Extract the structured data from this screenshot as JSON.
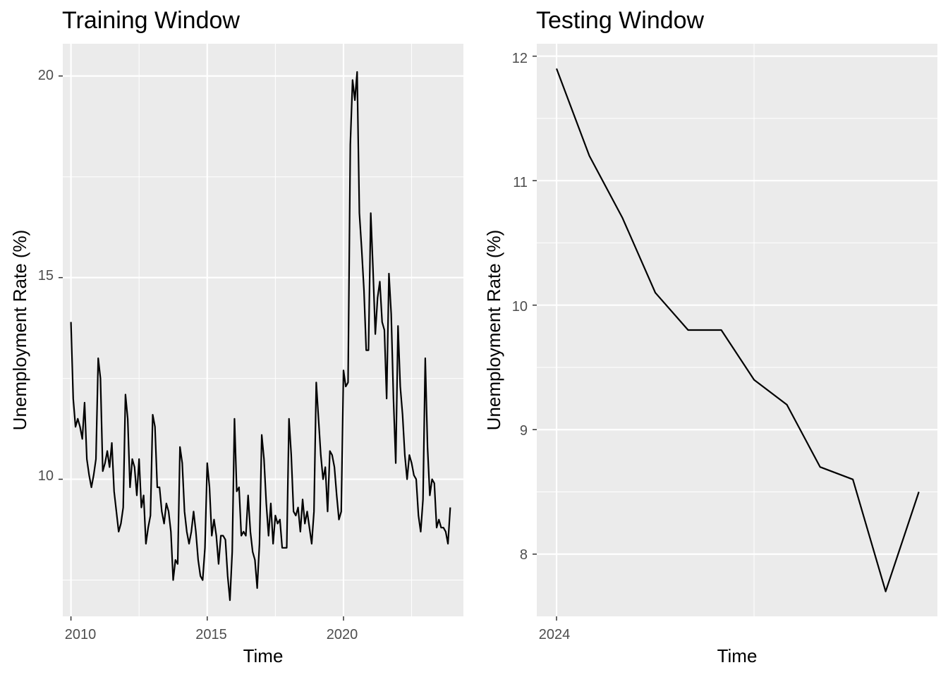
{
  "chart_data": [
    {
      "type": "line",
      "title": "Training Window",
      "xlabel": "Time",
      "ylabel": "Unemployment Rate (%)",
      "x_ticks": [
        "2010",
        "2015",
        "2020"
      ],
      "y_ticks": [
        "10",
        "15",
        "20"
      ],
      "xlim": [
        2009.7,
        2024.4
      ],
      "ylim": [
        6.6,
        20.8
      ],
      "grid": true,
      "legend": "none",
      "series": [
        {
          "x": [
            2010.0,
            2010.083,
            2010.167,
            2010.25,
            2010.333,
            2010.417,
            2010.5,
            2010.583,
            2010.667,
            2010.75,
            2010.833,
            2010.917,
            2011.0,
            2011.083,
            2011.167,
            2011.25,
            2011.333,
            2011.417,
            2011.5,
            2011.583,
            2011.667,
            2011.75,
            2011.833,
            2011.917,
            2012.0,
            2012.083,
            2012.167,
            2012.25,
            2012.333,
            2012.417,
            2012.5,
            2012.583,
            2012.667,
            2012.75,
            2012.833,
            2012.917,
            2013.0,
            2013.083,
            2013.167,
            2013.25,
            2013.333,
            2013.417,
            2013.5,
            2013.583,
            2013.667,
            2013.75,
            2013.833,
            2013.917,
            2014.0,
            2014.083,
            2014.167,
            2014.25,
            2014.333,
            2014.417,
            2014.5,
            2014.583,
            2014.667,
            2014.75,
            2014.833,
            2014.917,
            2015.0,
            2015.083,
            2015.167,
            2015.25,
            2015.333,
            2015.417,
            2015.5,
            2015.583,
            2015.667,
            2015.75,
            2015.833,
            2015.917,
            2016.0,
            2016.083,
            2016.167,
            2016.25,
            2016.333,
            2016.417,
            2016.5,
            2016.583,
            2016.667,
            2016.75,
            2016.833,
            2016.917,
            2017.0,
            2017.083,
            2017.167,
            2017.25,
            2017.333,
            2017.417,
            2017.5,
            2017.583,
            2017.667,
            2017.75,
            2017.833,
            2017.917,
            2018.0,
            2018.083,
            2018.167,
            2018.25,
            2018.333,
            2018.417,
            2018.5,
            2018.583,
            2018.667,
            2018.75,
            2018.833,
            2018.917,
            2019.0,
            2019.083,
            2019.167,
            2019.25,
            2019.333,
            2019.417,
            2019.5,
            2019.583,
            2019.667,
            2019.75,
            2019.833,
            2019.917,
            2020.0,
            2020.083,
            2020.167,
            2020.25,
            2020.333,
            2020.417,
            2020.5,
            2020.583,
            2020.667,
            2020.75,
            2020.833,
            2020.917,
            2021.0,
            2021.083,
            2021.167,
            2021.25,
            2021.333,
            2021.417,
            2021.5,
            2021.583,
            2021.667,
            2021.75,
            2021.833,
            2021.917,
            2022.0,
            2022.083,
            2022.167,
            2022.25,
            2022.333,
            2022.417,
            2022.5,
            2022.583,
            2022.667,
            2022.75,
            2022.833,
            2022.917,
            2023.0,
            2023.083,
            2023.167,
            2023.25,
            2023.333,
            2023.417,
            2023.5,
            2023.583,
            2023.667,
            2023.75,
            2023.833,
            2023.917
          ],
          "y": [
            13.9,
            12.0,
            11.3,
            11.5,
            11.3,
            11.0,
            11.9,
            10.5,
            10.1,
            9.8,
            10.1,
            10.5,
            13.0,
            12.5,
            10.2,
            10.4,
            10.7,
            10.3,
            10.9,
            9.7,
            9.2,
            8.7,
            8.9,
            9.3,
            12.1,
            11.5,
            9.8,
            10.5,
            10.3,
            9.6,
            10.5,
            9.3,
            9.6,
            8.4,
            8.8,
            9.1,
            11.6,
            11.3,
            9.8,
            9.8,
            9.2,
            8.9,
            9.4,
            9.2,
            8.7,
            7.5,
            8.0,
            7.9,
            10.8,
            10.4,
            9.2,
            8.7,
            8.4,
            8.7,
            9.2,
            8.7,
            8.0,
            7.6,
            7.5,
            8.3,
            10.4,
            9.8,
            8.6,
            9.0,
            8.6,
            7.9,
            8.6,
            8.6,
            8.5,
            7.6,
            7.0,
            8.2,
            11.5,
            9.7,
            9.8,
            8.6,
            8.7,
            8.6,
            9.6,
            8.7,
            8.2,
            8.0,
            7.3,
            8.4,
            11.1,
            10.5,
            9.4,
            8.6,
            9.4,
            8.4,
            9.1,
            8.9,
            9.0,
            8.3,
            8.3,
            8.3,
            11.5,
            10.6,
            9.2,
            9.1,
            9.3,
            8.7,
            9.5,
            8.9,
            9.2,
            8.8,
            8.4,
            9.2,
            12.4,
            11.5,
            10.6,
            10.0,
            10.3,
            9.2,
            10.7,
            10.6,
            10.3,
            9.6,
            9.0,
            9.2,
            12.7,
            12.3,
            12.4,
            18.3,
            19.9,
            19.4,
            20.1,
            16.6,
            15.7,
            14.7,
            13.2,
            13.2,
            16.6,
            15.2,
            13.6,
            14.5,
            14.9,
            13.9,
            13.7,
            12.0,
            15.1,
            14.1,
            12.0,
            10.4,
            13.8,
            12.3,
            11.6,
            10.6,
            10.0,
            10.6,
            10.4,
            10.1,
            10.0,
            9.1,
            8.7,
            9.5,
            13.0,
            10.8,
            9.6,
            10.0,
            9.9,
            8.8,
            9.0,
            8.8,
            8.8,
            8.7,
            8.4,
            9.3
          ]
        }
      ]
    },
    {
      "type": "line",
      "title": "Testing Window",
      "xlabel": "Time",
      "ylabel": "Unemployment Rate (%)",
      "x_ticks": [
        "2024"
      ],
      "y_ticks": [
        "8",
        "9",
        "10",
        "11",
        "12"
      ],
      "xlim": [
        2023.95,
        2024.964
      ],
      "ylim": [
        7.5,
        12.1
      ],
      "grid": true,
      "legend": "none",
      "series": [
        {
          "x": [
            2024.0,
            2024.083,
            2024.167,
            2024.25,
            2024.333,
            2024.417,
            2024.5,
            2024.583,
            2024.667,
            2024.75,
            2024.833,
            2024.917
          ],
          "y": [
            11.9,
            11.2,
            10.7,
            10.1,
            9.8,
            9.8,
            9.4,
            9.2,
            8.7,
            8.6,
            7.7,
            8.5
          ]
        }
      ]
    }
  ]
}
